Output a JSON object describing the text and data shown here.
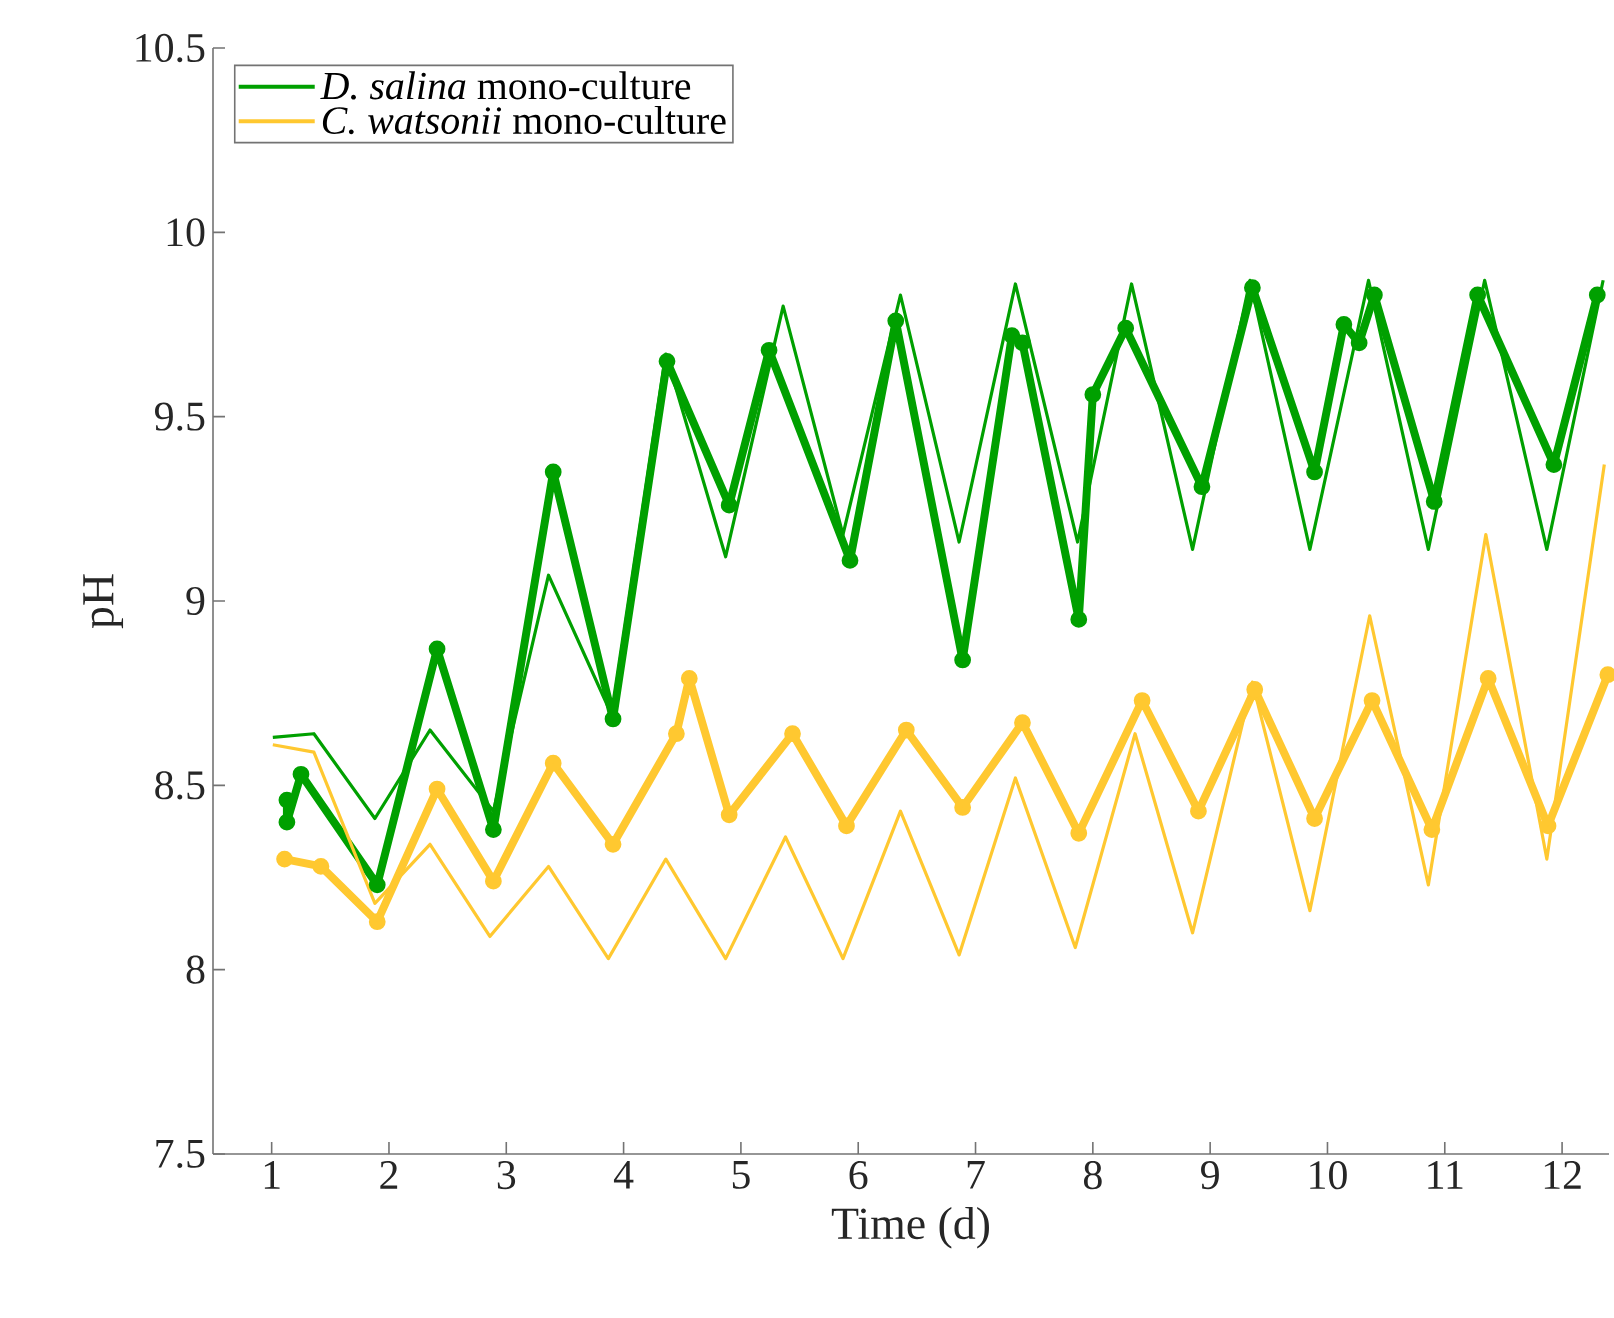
{
  "chart_data": {
    "type": "line",
    "xlabel": "Time (d)",
    "ylabel": "pH",
    "xlim": [
      0.5,
      12.4
    ],
    "ylim": [
      7.5,
      10.5
    ],
    "xticks": [
      1,
      2,
      3,
      4,
      5,
      6,
      7,
      8,
      9,
      10,
      11,
      12
    ],
    "yticks": [
      7.5,
      8,
      8.5,
      9,
      9.5,
      10,
      10.5
    ],
    "legend": "top left",
    "series": [
      {
        "marker": "circle",
        "color": "#00a000",
        "x": [
          1.13,
          1.13,
          1.25,
          1.9,
          2.41,
          2.89,
          3.4,
          3.91,
          4.37,
          4.9,
          5.24,
          5.93,
          6.32,
          6.89,
          7.31,
          7.4,
          7.88,
          8.0,
          8.28,
          8.93,
          9.36,
          9.89,
          10.14,
          10.27,
          10.4,
          10.91,
          11.28,
          11.93,
          12.3
        ],
        "values": [
          8.46,
          8.4,
          8.53,
          8.23,
          8.87,
          8.38,
          9.35,
          8.68,
          9.65,
          9.26,
          9.68,
          9.11,
          9.76,
          8.84,
          9.72,
          9.7,
          8.95,
          9.56,
          9.74,
          9.31,
          9.85,
          9.35,
          9.75,
          9.7,
          9.83,
          9.27,
          9.83,
          9.37,
          9.83
        ]
      },
      {
        "marker": "circle",
        "color": "#ffc830",
        "x": [
          1.11,
          1.42,
          1.9,
          2.41,
          2.89,
          3.4,
          3.91,
          4.45,
          4.56,
          4.9,
          5.44,
          5.9,
          6.41,
          6.89,
          7.4,
          7.88,
          8.42,
          8.9,
          9.38,
          9.89,
          10.38,
          10.89,
          11.37,
          11.88,
          12.39
        ],
        "values": [
          8.3,
          8.28,
          8.13,
          8.49,
          8.24,
          8.56,
          8.34,
          8.64,
          8.79,
          8.42,
          8.64,
          8.39,
          8.65,
          8.44,
          8.67,
          8.37,
          8.73,
          8.43,
          8.76,
          8.41,
          8.73,
          8.38,
          8.79,
          8.39,
          8.8
        ]
      },
      {
        "name": "*D. salina* mono-culture",
        "marker": "none",
        "color": "#00a000",
        "x": [
          1.01,
          1.36,
          1.88,
          2.35,
          2.89,
          3.36,
          3.9,
          4.36,
          4.87,
          5.36,
          5.87,
          6.36,
          6.86,
          7.34,
          7.87,
          8.33,
          8.85,
          9.34,
          9.85,
          10.35,
          10.86,
          11.34,
          11.87,
          12.35
        ],
        "values": [
          8.63,
          8.64,
          8.41,
          8.65,
          8.43,
          9.07,
          8.69,
          9.67,
          9.12,
          9.8,
          9.18,
          9.83,
          9.16,
          9.86,
          9.16,
          9.86,
          9.14,
          9.87,
          9.14,
          9.87,
          9.14,
          9.87,
          9.14,
          9.87
        ]
      },
      {
        "name": "*C. watsonii* mono-culture",
        "marker": "none",
        "color": "#ffc830",
        "x": [
          1.01,
          1.36,
          1.88,
          2.35,
          2.86,
          3.36,
          3.87,
          4.36,
          4.87,
          5.38,
          5.87,
          6.36,
          6.86,
          7.34,
          7.85,
          8.36,
          8.85,
          9.36,
          9.85,
          10.36,
          10.86,
          11.35,
          11.87,
          12.36
        ],
        "values": [
          8.61,
          8.59,
          8.18,
          8.34,
          8.09,
          8.28,
          8.03,
          8.3,
          8.03,
          8.36,
          8.03,
          8.43,
          8.04,
          8.52,
          8.06,
          8.64,
          8.1,
          8.78,
          8.16,
          8.96,
          8.23,
          9.18,
          8.3,
          9.37
        ]
      }
    ]
  }
}
